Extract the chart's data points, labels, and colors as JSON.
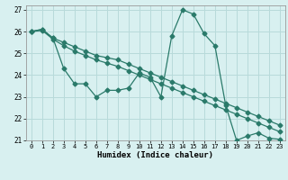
{
  "title": "",
  "xlabel": "Humidex (Indice chaleur)",
  "bg_color": "#d8f0f0",
  "grid_color": "#b8dada",
  "line_color": "#2a7a6a",
  "xlim": [
    -0.5,
    23.5
  ],
  "ylim": [
    21.0,
    27.2
  ],
  "xticks": [
    0,
    1,
    2,
    3,
    4,
    5,
    6,
    7,
    8,
    9,
    10,
    11,
    12,
    13,
    14,
    15,
    16,
    17,
    18,
    19,
    20,
    21,
    22,
    23
  ],
  "yticks": [
    21,
    22,
    23,
    24,
    25,
    26,
    27
  ],
  "line_jagged_x": [
    0,
    1,
    2,
    3,
    4,
    5,
    6,
    7,
    8,
    9,
    10,
    11,
    12,
    13,
    14,
    15,
    16,
    17,
    18,
    19,
    20,
    21,
    22,
    23
  ],
  "line_jagged_y": [
    26.0,
    26.1,
    25.7,
    24.3,
    23.6,
    23.6,
    23.0,
    23.3,
    23.3,
    23.4,
    24.1,
    23.9,
    23.0,
    25.8,
    27.0,
    26.8,
    25.9,
    25.35,
    22.6,
    21.0,
    21.2,
    21.35,
    21.1,
    21.05
  ],
  "line_upper_x": [
    0,
    1,
    2,
    3,
    4,
    5,
    6,
    7,
    8,
    9,
    10,
    11,
    12,
    13,
    14,
    15,
    16,
    17,
    18,
    19,
    20,
    21,
    22,
    23
  ],
  "line_upper_y": [
    26.0,
    26.1,
    25.7,
    25.5,
    25.3,
    25.1,
    24.9,
    24.8,
    24.7,
    24.5,
    24.3,
    24.1,
    23.9,
    23.7,
    23.5,
    23.3,
    23.1,
    22.9,
    22.7,
    22.5,
    22.3,
    22.1,
    21.9,
    21.7
  ],
  "line_lower_x": [
    0,
    1,
    2,
    3,
    4,
    5,
    6,
    7,
    8,
    9,
    10,
    11,
    12,
    13,
    14,
    15,
    16,
    17,
    18,
    19,
    20,
    21,
    22,
    23
  ],
  "line_lower_y": [
    26.0,
    26.05,
    25.65,
    25.35,
    25.1,
    24.9,
    24.7,
    24.55,
    24.4,
    24.2,
    24.0,
    23.8,
    23.6,
    23.4,
    23.2,
    23.0,
    22.8,
    22.6,
    22.4,
    22.2,
    22.0,
    21.8,
    21.6,
    21.4
  ]
}
